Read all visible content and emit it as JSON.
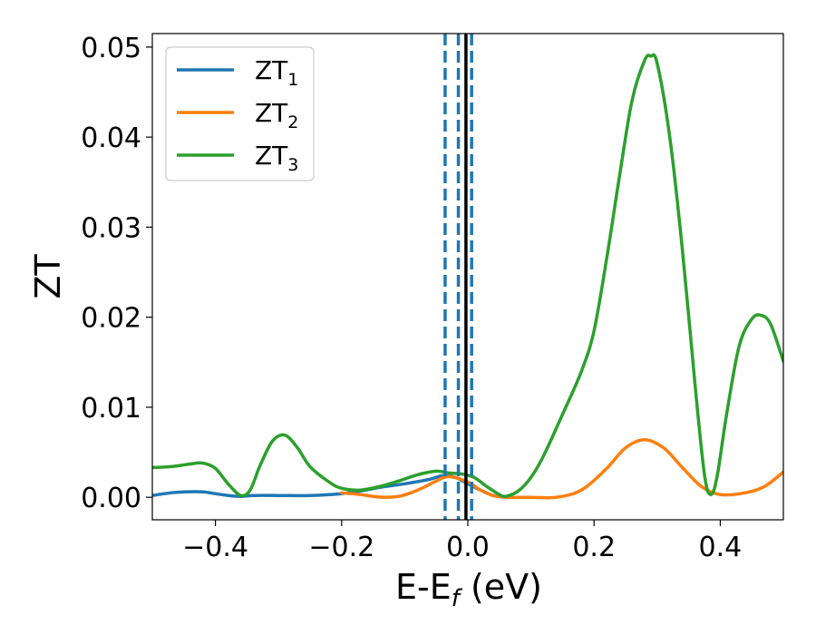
{
  "chart_data": {
    "type": "line",
    "xlabel": "E-E",
    "xlabel_sub": "f",
    "xlabel_unit": " (eV)",
    "ylabel": "ZT",
    "xlim": [
      -0.5,
      0.5
    ],
    "ylim": [
      -0.0025,
      0.0515
    ],
    "xticks": [
      -0.4,
      -0.2,
      0.0,
      0.2,
      0.4
    ],
    "xtick_labels": [
      "−0.4",
      "−0.2",
      "0.0",
      "0.2",
      "0.4"
    ],
    "yticks": [
      0.0,
      0.01,
      0.02,
      0.03,
      0.04,
      0.05
    ],
    "ytick_labels": [
      "0.00",
      "0.01",
      "0.02",
      "0.03",
      "0.04",
      "0.05"
    ],
    "legend_position": "top-left",
    "series": [
      {
        "name": "ZT",
        "name_sub": "1",
        "color": "#1f77b4",
        "x": [
          -0.5,
          -0.47,
          -0.45,
          -0.42,
          -0.4,
          -0.38,
          -0.36,
          -0.34,
          -0.3,
          -0.25,
          -0.2,
          -0.17,
          -0.14,
          -0.1,
          -0.06,
          -0.04,
          -0.02,
          0.0,
          0.02,
          0.04,
          0.06
        ],
        "y": [
          0.0002,
          0.0005,
          0.0006,
          0.0006,
          0.0004,
          0.0002,
          0.0001,
          0.0002,
          0.0002,
          0.0002,
          0.0004,
          0.0007,
          0.0011,
          0.0015,
          0.002,
          0.0024,
          0.0022,
          0.0015,
          0.0008,
          0.0002,
          0.0001
        ]
      },
      {
        "name": "ZT",
        "name_sub": "2",
        "color": "#ff7f0e",
        "x": [
          -0.2,
          -0.17,
          -0.15,
          -0.13,
          -0.11,
          -0.09,
          -0.07,
          -0.05,
          -0.03,
          0.0,
          0.02,
          0.04,
          0.06,
          0.1,
          0.14,
          0.18,
          0.22,
          0.25,
          0.28,
          0.31,
          0.34,
          0.37,
          0.4,
          0.44,
          0.47,
          0.5
        ],
        "y": [
          0.0005,
          0.0003,
          0.0001,
          0.0,
          0.0001,
          0.0005,
          0.0011,
          0.0018,
          0.0023,
          0.0017,
          0.0008,
          0.0002,
          0.0,
          0.0,
          0.0,
          0.0008,
          0.0032,
          0.0055,
          0.0064,
          0.0055,
          0.0033,
          0.0012,
          0.0003,
          0.0005,
          0.0012,
          0.0028
        ]
      },
      {
        "name": "ZT",
        "name_sub": "3",
        "color": "#2ca02c",
        "x": [
          -0.5,
          -0.47,
          -0.44,
          -0.42,
          -0.4,
          -0.38,
          -0.36,
          -0.345,
          -0.33,
          -0.31,
          -0.29,
          -0.27,
          -0.25,
          -0.22,
          -0.2,
          -0.17,
          -0.14,
          -0.11,
          -0.08,
          -0.05,
          -0.03,
          -0.01,
          0.01,
          0.03,
          0.05,
          0.06,
          0.08,
          0.1,
          0.12,
          0.15,
          0.18,
          0.2,
          0.22,
          0.24,
          0.26,
          0.28,
          0.29,
          0.3,
          0.32,
          0.34,
          0.36,
          0.375,
          0.385,
          0.395,
          0.41,
          0.43,
          0.45,
          0.465,
          0.48,
          0.5
        ],
        "y": [
          0.0033,
          0.0034,
          0.0037,
          0.0038,
          0.0032,
          0.0015,
          0.0002,
          0.0008,
          0.0034,
          0.0062,
          0.0069,
          0.0055,
          0.0034,
          0.0017,
          0.001,
          0.0008,
          0.0012,
          0.0018,
          0.0025,
          0.0029,
          0.0027,
          0.0026,
          0.0022,
          0.0012,
          0.0003,
          0.0001,
          0.0007,
          0.0022,
          0.0046,
          0.0092,
          0.014,
          0.0185,
          0.0265,
          0.0355,
          0.044,
          0.0485,
          0.049,
          0.0482,
          0.04,
          0.0275,
          0.0125,
          0.0025,
          0.0003,
          0.0023,
          0.0092,
          0.0168,
          0.0198,
          0.0202,
          0.0192,
          0.0151
        ]
      }
    ],
    "vlines": [
      {
        "x": -0.036,
        "style": "dashed",
        "color": "#1f77b4"
      },
      {
        "x": -0.015,
        "style": "dashed",
        "color": "#1f77b4"
      },
      {
        "x": 0.006,
        "style": "dashed",
        "color": "#1f77b4"
      },
      {
        "x": -0.003,
        "style": "solid",
        "color": "#000000"
      }
    ]
  }
}
